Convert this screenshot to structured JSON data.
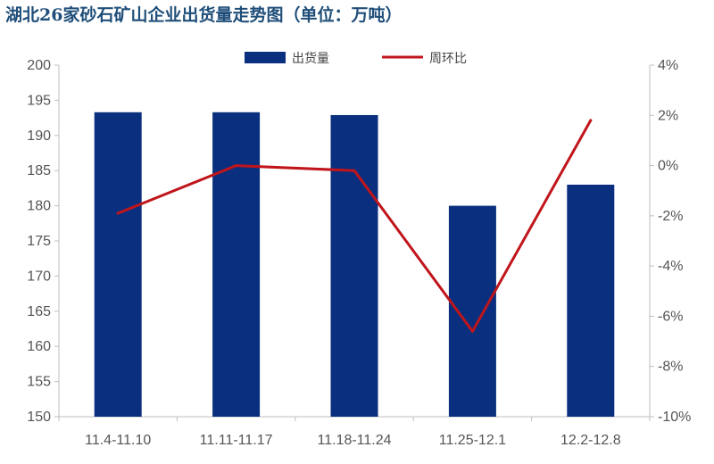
{
  "chart_data": {
    "type": "bar",
    "title": "湖北26家砂石矿山企业出货量走势图（单位：万吨）",
    "categories": [
      "11.4-11.10",
      "11.11-11.17",
      "11.18-11.24",
      "11.25-12.1",
      "12.2-12.8"
    ],
    "series": [
      {
        "name": "出货量",
        "type": "bar",
        "axis": "left",
        "values": [
          193.3,
          193.3,
          192.9,
          180.0,
          183.0
        ]
      },
      {
        "name": "周环比",
        "type": "line",
        "axis": "right",
        "values": [
          -1.9,
          0.0,
          -0.2,
          -6.6,
          1.8
        ]
      }
    ],
    "y_left": {
      "ylim": [
        150,
        200
      ],
      "ticks": [
        "150",
        "155",
        "160",
        "165",
        "170",
        "175",
        "180",
        "185",
        "190",
        "195",
        "200"
      ]
    },
    "y_right": {
      "ylim": [
        -10,
        4
      ],
      "ticks": [
        "-10%",
        "-8%",
        "-6%",
        "-4%",
        "-2%",
        "0%",
        "2%",
        "4%"
      ]
    },
    "legend_position": "top-center",
    "grid": false,
    "colors": {
      "bar": "#0a2f7e",
      "line": "#c0151b",
      "title": "#1f4e79",
      "axis": "#bfbfbf"
    }
  }
}
